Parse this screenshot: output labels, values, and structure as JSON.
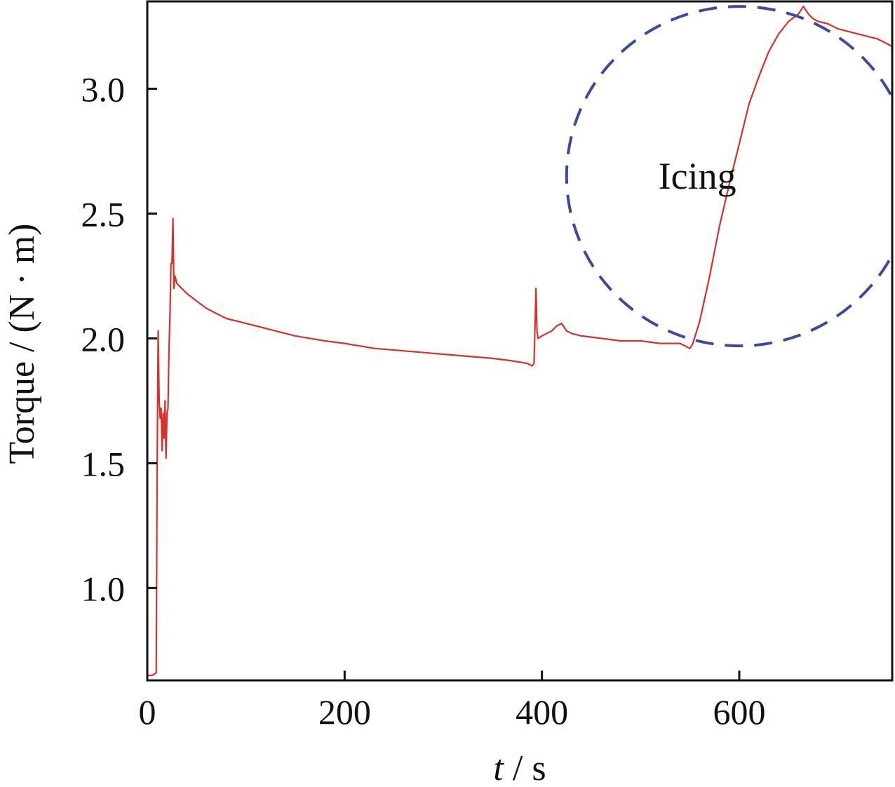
{
  "chart_data": {
    "type": "line",
    "title": "",
    "xlabel_var": "t",
    "xlabel_unit": " / s",
    "ylabel": "Torque / (N · m)",
    "xlim": [
      0,
      755
    ],
    "ylim": [
      0.63,
      3.35
    ],
    "x_ticks": [
      0,
      200,
      400,
      600
    ],
    "x_tick_labels": [
      "0",
      "200",
      "400",
      "600"
    ],
    "y_ticks": [
      1.0,
      1.5,
      2.0,
      2.5,
      3.0
    ],
    "y_tick_labels": [
      "1.0",
      "1.5",
      "2.0",
      "2.5",
      "3.0"
    ],
    "grid": false,
    "legend": "none",
    "series_color": "#d9302b",
    "annotation_color": "#3b4a9a",
    "series": [
      {
        "x": [
          0,
          5,
          9,
          10,
          11,
          12,
          13,
          14,
          15,
          16,
          17,
          18,
          19,
          20,
          21,
          22,
          23,
          24,
          25,
          26,
          27,
          28,
          30,
          35,
          40,
          50,
          60,
          70,
          80,
          100,
          120,
          150,
          180,
          200,
          230,
          260,
          290,
          320,
          350,
          370,
          385,
          390,
          392,
          393,
          394,
          395,
          396,
          400,
          405,
          410,
          415,
          420,
          425,
          430,
          440,
          460,
          480,
          500,
          520,
          540,
          550,
          553,
          560,
          570,
          580,
          590,
          600,
          610,
          620,
          630,
          640,
          650,
          660,
          665,
          670,
          675,
          680,
          690,
          700,
          720,
          740,
          755
        ],
        "y": [
          0.65,
          0.65,
          0.66,
          1.5,
          2.03,
          1.75,
          1.68,
          1.72,
          1.55,
          1.7,
          1.6,
          1.75,
          1.52,
          1.7,
          1.72,
          1.95,
          2.1,
          2.3,
          2.3,
          2.48,
          2.2,
          2.25,
          2.22,
          2.2,
          2.18,
          2.15,
          2.12,
          2.1,
          2.08,
          2.06,
          2.04,
          2.01,
          1.99,
          1.98,
          1.96,
          1.95,
          1.94,
          1.93,
          1.92,
          1.91,
          1.9,
          1.89,
          1.9,
          2.05,
          2.2,
          2.03,
          2.0,
          2.01,
          2.02,
          2.03,
          2.05,
          2.06,
          2.03,
          2.02,
          2.01,
          2.0,
          1.99,
          1.99,
          1.98,
          1.98,
          1.96,
          1.98,
          2.07,
          2.25,
          2.45,
          2.62,
          2.78,
          2.94,
          3.05,
          3.15,
          3.22,
          3.27,
          3.3,
          3.33,
          3.3,
          3.28,
          3.27,
          3.26,
          3.24,
          3.22,
          3.2,
          3.17
        ]
      }
    ],
    "annotations": [
      {
        "text": "Icing",
        "x": 518,
        "y": 2.6
      }
    ],
    "ellipse": {
      "cx": 600,
      "cy": 2.65,
      "rx": 175,
      "ry": 0.68
    }
  }
}
